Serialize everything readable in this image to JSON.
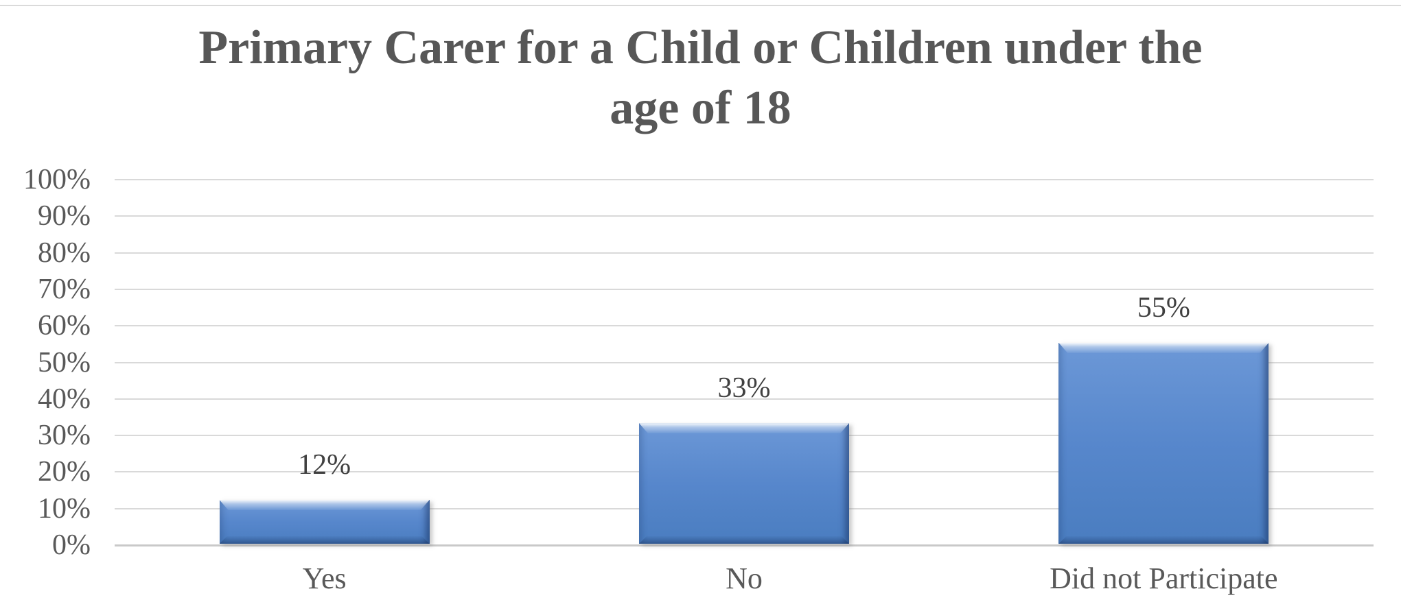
{
  "chart_data": {
    "type": "bar",
    "title": "Primary Carer for a Child or Children under the age of 18",
    "title_lines": [
      "Primary Carer for a Child or Children under the",
      "age of 18"
    ],
    "categories": [
      "Yes",
      "No",
      "Did not Participate"
    ],
    "values": [
      12,
      33,
      55
    ],
    "data_labels": [
      "12%",
      "33%",
      "55%"
    ],
    "xlabel": "",
    "ylabel": "",
    "ylim": [
      0,
      100
    ],
    "y_tick_step": 10,
    "y_ticks": [
      "100%",
      "90%",
      "80%",
      "70%",
      "60%",
      "50%",
      "40%",
      "30%",
      "20%",
      "10%",
      "0%"
    ],
    "grid": true,
    "legend": "none",
    "bar_style": "beveled-3d",
    "colors": {
      "bar_fill_top": "#6C98D7",
      "bar_fill": "#5787CC",
      "bar_fill_bottom": "#4A7DC0",
      "bar_bevel_highlight": "#E8F1FB",
      "bar_bevel_shadow": "#3C69A8",
      "title_text": "#575757",
      "axis_text": "#595959",
      "data_label_text": "#404040",
      "gridline": "#D9D9D9",
      "background": "#FFFFFF"
    }
  }
}
